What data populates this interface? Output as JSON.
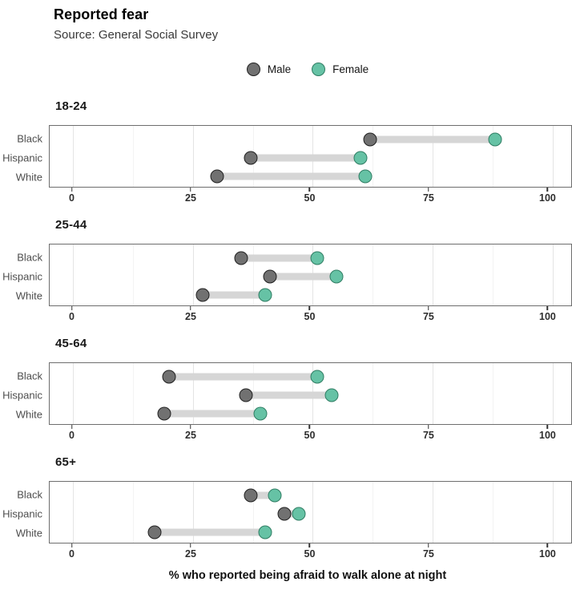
{
  "header": {
    "title": "Reported fear",
    "subtitle": "Source: General Social Survey"
  },
  "legend": {
    "items": [
      {
        "label": "Male",
        "fill": "#717171",
        "stroke": "#212121"
      },
      {
        "label": "Female",
        "fill": "#66c2a5",
        "stroke": "#2f7d63"
      }
    ]
  },
  "colors": {
    "connector": "#d6d6d6",
    "grid_major": "#e4e4e4",
    "grid_minor": "#f3f3f3",
    "panel_border": "#6e6e6e",
    "male_fill": "#717171",
    "female_fill": "#66c2a5"
  },
  "chart_data": {
    "type": "dumbbell",
    "title": "Reported fear",
    "subtitle": "Source: General Social Survey",
    "series_names": [
      "Male",
      "Female"
    ],
    "categories": [
      "Black",
      "Hispanic",
      "White"
    ],
    "x_axis": {
      "label": "% who reported being afraid to walk alone at night",
      "ticks": [
        0,
        25,
        50,
        75,
        100
      ],
      "minor_ticks": [
        12.5,
        37.5,
        62.5,
        87.5
      ],
      "min": -4.8,
      "max": 103.8
    },
    "facets": [
      {
        "title": "18-24",
        "rows": [
          {
            "category": "Black",
            "male": 62,
            "female": 88
          },
          {
            "category": "Hispanic",
            "male": 37,
            "female": 60
          },
          {
            "category": "White",
            "male": 30,
            "female": 61
          }
        ]
      },
      {
        "title": "25-44",
        "rows": [
          {
            "category": "Black",
            "male": 35,
            "female": 51
          },
          {
            "category": "Hispanic",
            "male": 41,
            "female": 55
          },
          {
            "category": "White",
            "male": 27,
            "female": 40
          }
        ]
      },
      {
        "title": "45-64",
        "rows": [
          {
            "category": "Black",
            "male": 20,
            "female": 51
          },
          {
            "category": "Hispanic",
            "male": 36,
            "female": 54
          },
          {
            "category": "White",
            "male": 19,
            "female": 39
          }
        ]
      },
      {
        "title": "65+",
        "rows": [
          {
            "category": "Black",
            "male": 37,
            "female": 42
          },
          {
            "category": "Hispanic",
            "male": 44,
            "female": 47
          },
          {
            "category": "White",
            "male": 17,
            "female": 40
          }
        ]
      }
    ]
  }
}
